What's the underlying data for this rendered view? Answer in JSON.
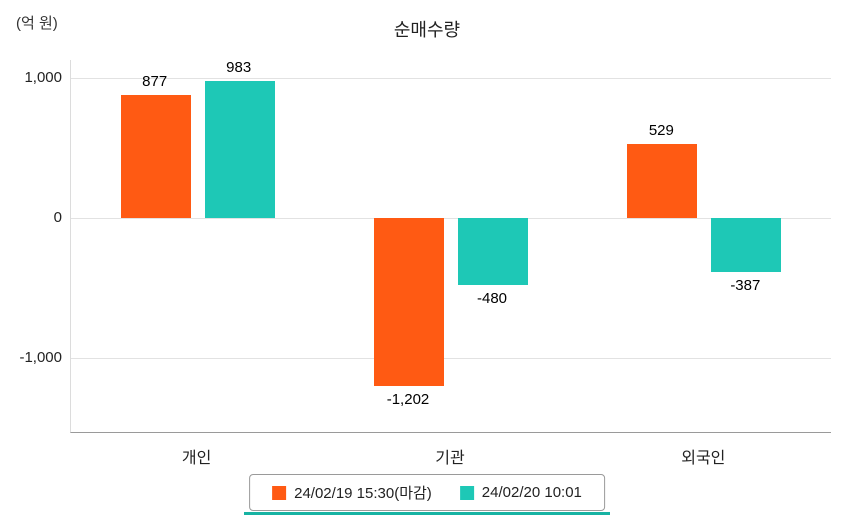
{
  "title": "순매수량",
  "unit_label": "(억 원)",
  "colors": {
    "series1": "#ff5a13",
    "series2": "#1ec8b6",
    "grid": "#e2e2e2",
    "axis": "#9a9a9a",
    "legend_underline": "#17b3a3"
  },
  "chart_data": {
    "type": "bar",
    "title": "순매수량",
    "ylabel": "(억 원)",
    "categories": [
      "개인",
      "기관",
      "외국인"
    ],
    "series": [
      {
        "name": "24/02/19 15:30(마감)",
        "color": "#ff5a13",
        "values": [
          877,
          -1202,
          529
        ]
      },
      {
        "name": "24/02/20 10:01",
        "color": "#1ec8b6",
        "values": [
          983,
          -480,
          -387
        ]
      }
    ],
    "y_ticks": [
      1000,
      0,
      -1000
    ],
    "ylim": [
      -1530,
      1130
    ],
    "grid": true,
    "legend_position": "bottom"
  },
  "legend": {
    "items": [
      {
        "label": "24/02/19 15:30(마감)"
      },
      {
        "label": "24/02/20 10:01"
      }
    ]
  }
}
